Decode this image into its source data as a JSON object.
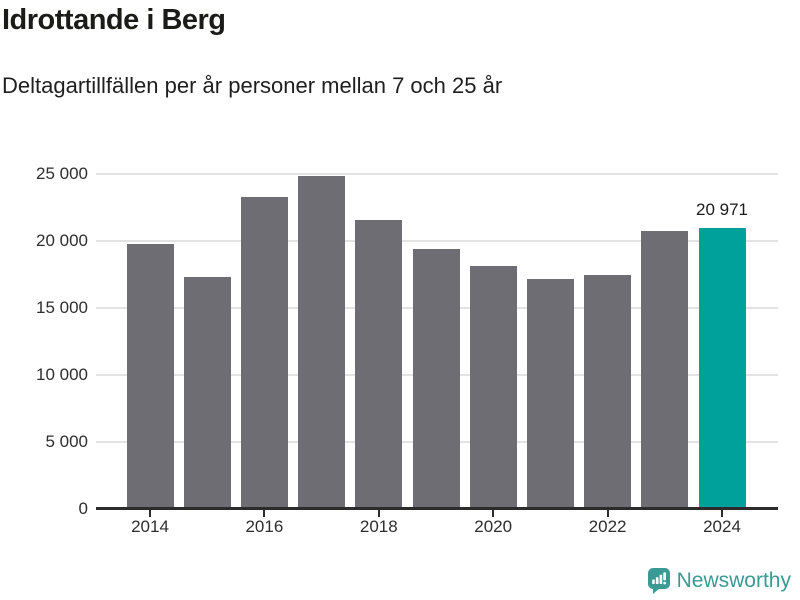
{
  "header": {
    "title": "Idrottande i Berg",
    "subtitle": "Deltagartillfällen per år personer mellan 7 och 25 år"
  },
  "chart_data": {
    "type": "bar",
    "title": "Idrottande i Berg",
    "subtitle": "Deltagartillfällen per år personer mellan 7 och 25 år",
    "xlabel": "",
    "ylabel": "",
    "categories": [
      2014,
      2015,
      2016,
      2017,
      2018,
      2019,
      2020,
      2021,
      2022,
      2023,
      2024
    ],
    "values": [
      19750,
      17300,
      23250,
      24850,
      21550,
      19400,
      18100,
      17150,
      17450,
      20750,
      20971
    ],
    "highlight_index": 10,
    "highlight_label": "20 971",
    "bar_color": "#6e6d73",
    "highlight_color": "#00a09b",
    "grid": true,
    "gridline_color": "#e3e3e4",
    "ylim": [
      0,
      25500
    ],
    "y_ticks": [
      {
        "label": "25 000",
        "value": 25000
      },
      {
        "label": "20 000",
        "value": 20000
      },
      {
        "label": "15 000",
        "value": 15000
      },
      {
        "label": "10 000",
        "value": 10000
      },
      {
        "label": "5 000",
        "value": 5000
      },
      {
        "label": "0",
        "value": 0
      }
    ],
    "x_ticks": [
      {
        "label": "2014",
        "year": 2014
      },
      {
        "label": "2016",
        "year": 2016
      },
      {
        "label": "2018",
        "year": 2018
      },
      {
        "label": "2020",
        "year": 2020
      },
      {
        "label": "2022",
        "year": 2022
      },
      {
        "label": "2024",
        "year": 2024
      }
    ],
    "legend": null
  },
  "footer": {
    "brand": "Newsworthy",
    "brand_color": "#3b9a93",
    "logo_icon": "bar-chart-speech-bubble-icon"
  }
}
